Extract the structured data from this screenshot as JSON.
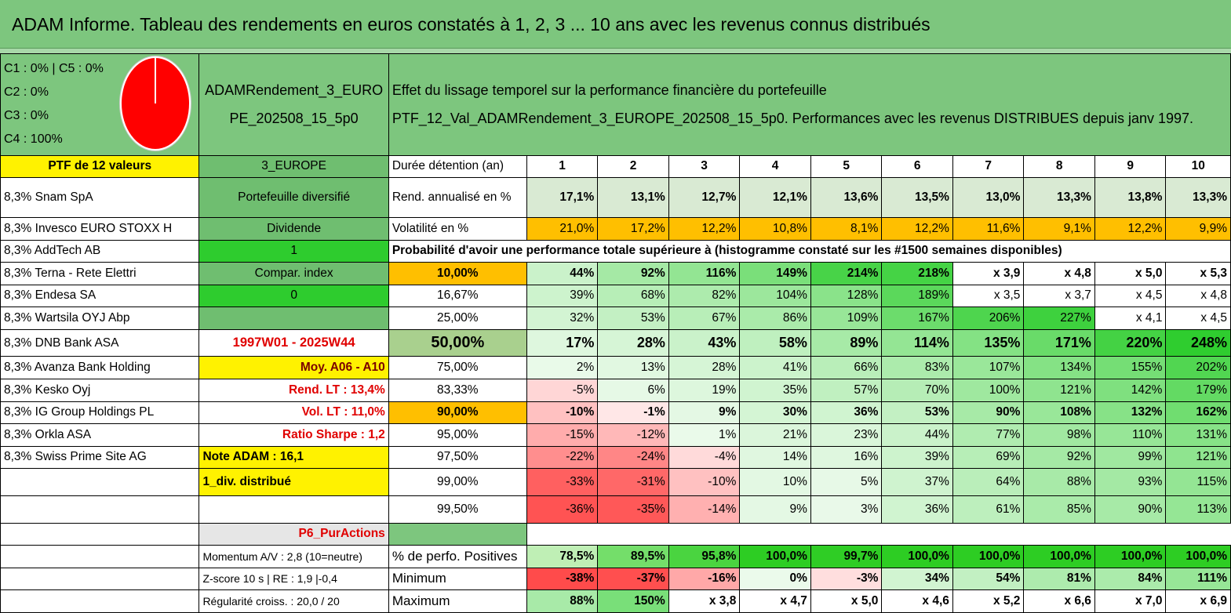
{
  "title": "ADAM Informe. Tableau des rendements en euros constatés à 1, 2, 3 ... 10 ans avec les revenus connus distribués",
  "composition": {
    "line1": "C1 : 0% | C5 : 0%",
    "line2": "C2 : 0%",
    "line3": "C3 : 0%",
    "line4": "C4 : 100%",
    "pie_color": "#ff0000"
  },
  "portfolio_name": {
    "line1": "ADAMRendement_3_EURO",
    "line2": "PE_202508_15_5p0"
  },
  "description": {
    "line1": "Effet du lissage temporel sur la performance financière du portefeuille",
    "line2": "PTF_12_Val_ADAMRendement_3_EUROPE_202508_15_5p0. Performances avec les revenus DISTRIBUES depuis janv 1997."
  },
  "ptf_label": "PTF de 12 valeurs",
  "zone": "3_EUROPE",
  "duree_label": "Durée détention (an)",
  "years": [
    "1",
    "2",
    "3",
    "4",
    "5",
    "6",
    "7",
    "8",
    "9",
    "10"
  ],
  "holdings": [
    "8,3% Snam SpA",
    "8,3% Invesco EURO STOXX H",
    "8,3% AddTech AB",
    "8,3% Terna - Rete Elettri",
    "8,3% Endesa SA",
    "8,3% Wartsila OYJ Abp",
    "8,3% DNB Bank ASA",
    "8,3% Avanza Bank Holding",
    "8,3% Kesko Oyj",
    "8,3% IG Group Holdings PL",
    "8,3% Orkla ASA",
    "8,3% Swiss Prime Site AG"
  ],
  "info": {
    "diversifie": "Portefeuille diversifié",
    "dividende": "Dividende",
    "one": "1",
    "compar": "Compar. index",
    "zero": "0",
    "period": "1997W01 - 2025W44",
    "moy": "Moy. A06 - A10",
    "rend_lt": "Rend. LT : 13,4%",
    "vol_lt": "Vol. LT : 11,0%",
    "sharpe": "Ratio Sharpe : 1,2",
    "note": "Note ADAM : 16,1",
    "div": "1_div. distribué",
    "p6": "P6_PurActions",
    "momentum": "Momentum A/V : 2,8 (10=neutre)",
    "zscore": "Z-score 10 s | RE : 1,9 |-0,4",
    "regularite": "Régularité croiss. : 20,0 / 20"
  },
  "rend": {
    "label": "Rend. annualisé en %",
    "values": [
      "17,1%",
      "13,1%",
      "12,7%",
      "12,1%",
      "13,6%",
      "13,5%",
      "13,0%",
      "13,3%",
      "13,8%",
      "13,3%"
    ]
  },
  "vol": {
    "label": "Volatilité en %",
    "values": [
      "21,0%",
      "17,2%",
      "12,2%",
      "10,8%",
      "8,1%",
      "12,2%",
      "11,6%",
      "9,1%",
      "12,2%",
      "9,9%"
    ]
  },
  "prob_title": "Probabilité d'avoir une performance totale supérieure à (histogramme constaté sur les #1500 semaines disponibles)",
  "quantiles": [
    {
      "label": "10,00%",
      "values": [
        "44%",
        "92%",
        "116%",
        "149%",
        "214%",
        "218%",
        "x 3,9",
        "x 4,8",
        "x 5,0",
        "x 5,3"
      ]
    },
    {
      "label": "16,67%",
      "values": [
        "39%",
        "68%",
        "82%",
        "104%",
        "128%",
        "189%",
        "x 3,5",
        "x 3,7",
        "x 4,5",
        "x 4,8"
      ]
    },
    {
      "label": "25,00%",
      "values": [
        "32%",
        "53%",
        "67%",
        "86%",
        "109%",
        "167%",
        "206%",
        "227%",
        "x 4,1",
        "x 4,5"
      ]
    },
    {
      "label": "50,00%",
      "values": [
        "17%",
        "28%",
        "43%",
        "58%",
        "89%",
        "114%",
        "135%",
        "171%",
        "220%",
        "248%"
      ]
    },
    {
      "label": "75,00%",
      "values": [
        "2%",
        "13%",
        "28%",
        "41%",
        "66%",
        "83%",
        "107%",
        "134%",
        "155%",
        "202%"
      ]
    },
    {
      "label": "83,33%",
      "values": [
        "-5%",
        "6%",
        "19%",
        "35%",
        "57%",
        "70%",
        "100%",
        "121%",
        "142%",
        "179%"
      ]
    },
    {
      "label": "90,00%",
      "values": [
        "-10%",
        "-1%",
        "9%",
        "30%",
        "36%",
        "53%",
        "90%",
        "108%",
        "132%",
        "162%"
      ]
    },
    {
      "label": "95,00%",
      "values": [
        "-15%",
        "-12%",
        "1%",
        "21%",
        "23%",
        "44%",
        "77%",
        "98%",
        "110%",
        "131%"
      ]
    },
    {
      "label": "97,50%",
      "values": [
        "-22%",
        "-24%",
        "-4%",
        "14%",
        "16%",
        "39%",
        "69%",
        "92%",
        "99%",
        "121%"
      ]
    },
    {
      "label": "99,00%",
      "values": [
        "-33%",
        "-31%",
        "-10%",
        "10%",
        "5%",
        "37%",
        "64%",
        "88%",
        "93%",
        "115%"
      ]
    },
    {
      "label": "99,50%",
      "values": [
        "-36%",
        "-35%",
        "-14%",
        "9%",
        "3%",
        "36%",
        "61%",
        "85%",
        "90%",
        "113%"
      ]
    }
  ],
  "positives": {
    "label": "% de perfo. Positives",
    "values": [
      "78,5%",
      "89,5%",
      "95,8%",
      "100,0%",
      "99,7%",
      "100,0%",
      "100,0%",
      "100,0%",
      "100,0%",
      "100,0%"
    ]
  },
  "minimum": {
    "label": "Minimum",
    "values": [
      "-38%",
      "-37%",
      "-16%",
      "0%",
      "-3%",
      "34%",
      "54%",
      "81%",
      "84%",
      "111%"
    ]
  },
  "maximum": {
    "label": "Maximum",
    "values": [
      "88%",
      "150%",
      "x 3,8",
      "x 4,7",
      "x 5,0",
      "x 4,6",
      "x 5,2",
      "x 6,6",
      "x 7,0",
      "x 6,9"
    ]
  }
}
